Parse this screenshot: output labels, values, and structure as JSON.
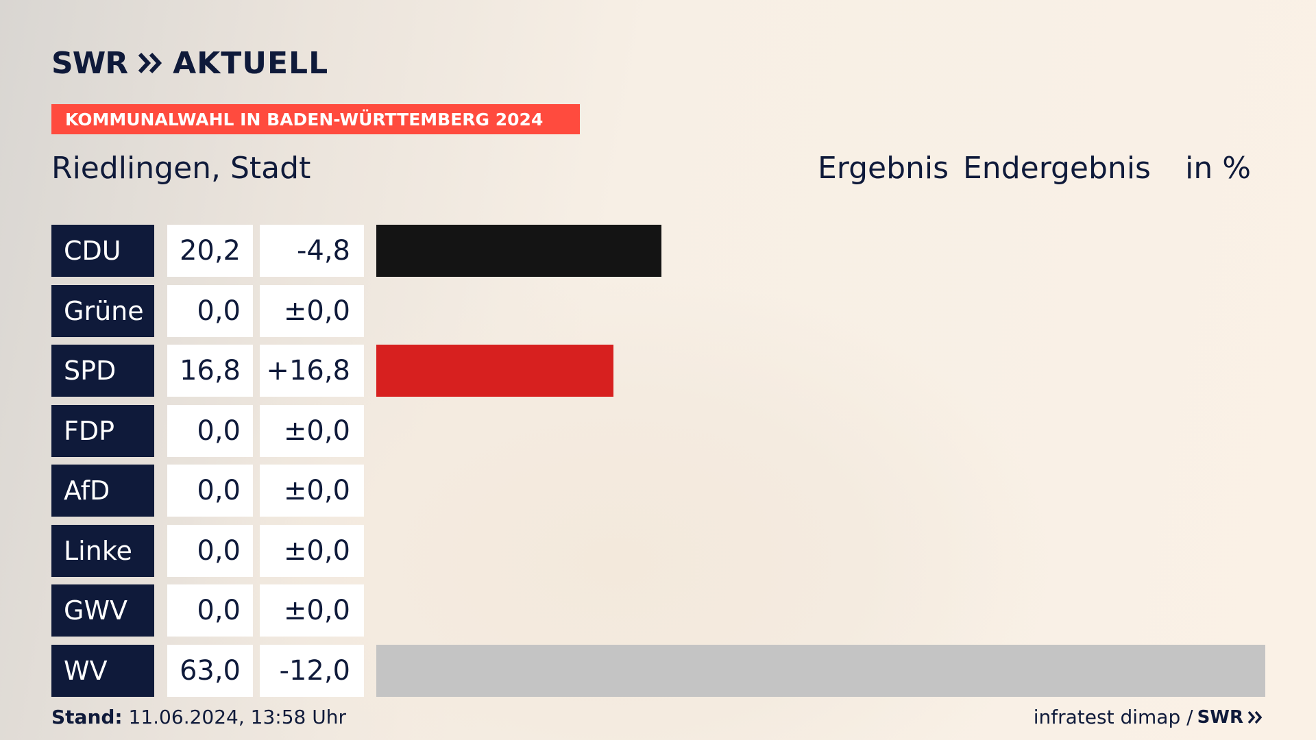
{
  "brand": {
    "swr": "SWR",
    "aktuell": "AKTUELL"
  },
  "banner": "KOMMUNALWAHL IN BADEN-WÜRTTEMBERG 2024",
  "place": "Riedlingen, Stadt",
  "headers": {
    "ergebnis": "Ergebnis",
    "endergebnis": "Endergebnis",
    "unit": "in %"
  },
  "colors": {
    "navy": "#0f1a3a",
    "banner": "#ff4b3e",
    "CDU": "#141414",
    "SPD": "#d7201f",
    "WV": "#c4c4c4"
  },
  "chart_data": {
    "type": "bar",
    "orientation": "horizontal",
    "categories": [
      "CDU",
      "Grüne",
      "SPD",
      "FDP",
      "AfD",
      "Linke",
      "GWV",
      "WV"
    ],
    "values": [
      20.2,
      0.0,
      16.8,
      0.0,
      0.0,
      0.0,
      0.0,
      63.0
    ],
    "labels": [
      "20,2",
      "0,0",
      "16,8",
      "0,0",
      "0,0",
      "0,0",
      "0,0",
      "63,0"
    ],
    "diffs": [
      "-4,8",
      "±0,0",
      "+16,8",
      "±0,0",
      "±0,0",
      "±0,0",
      "±0,0",
      "-12,0"
    ],
    "bar_colors": [
      "#141414",
      "",
      "#d7201f",
      "",
      "",
      "",
      "",
      "#c4c4c4"
    ]
  },
  "footer": {
    "stand_label": "Stand:",
    "stand_value": "11.06.2024, 13:58 Uhr",
    "source": "infratest dimap /",
    "source_brand": "SWR"
  }
}
